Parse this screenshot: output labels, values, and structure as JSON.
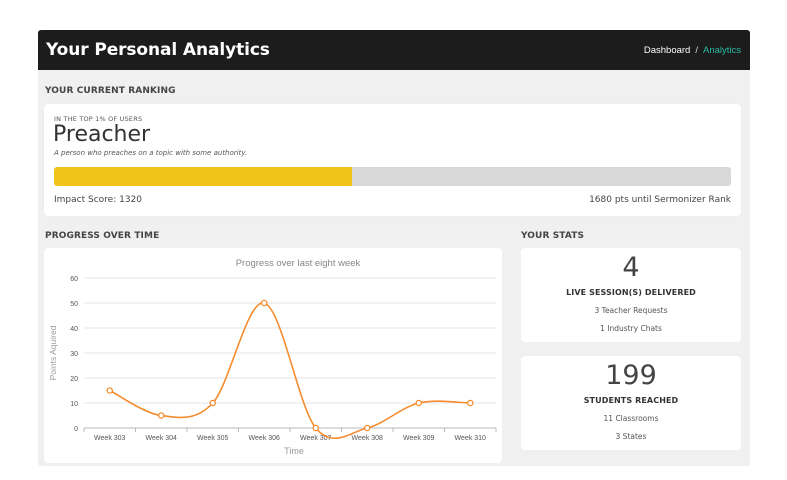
{
  "header": {
    "title": "Your Personal Analytics",
    "breadcrumb": [
      {
        "label": "Dashboard",
        "active": false
      },
      {
        "label": "Analytics",
        "active": true
      }
    ],
    "separator": "/"
  },
  "ranking": {
    "section_title": "YOUR CURRENT RANKING",
    "top_label": "IN THE TOP 1% OF USERS",
    "rank_name": "Preacher",
    "description": "A person who preaches on a topic with some authority.",
    "progress_fraction": 0.44,
    "impact_score": "Impact Score: 1320",
    "until_next": "1680 pts until Sermonizer Rank"
  },
  "progress": {
    "section_title": "PROGRESS OVER TIME"
  },
  "stats": {
    "section_title": "YOUR STATS",
    "cards": [
      {
        "value": "4",
        "label": "LIVE SESSION(S) DELIVERED",
        "lines": [
          "3 Teacher Requests",
          "1 Industry Chats"
        ]
      },
      {
        "value": "199",
        "label": "STUDENTS REACHED",
        "lines": [
          "11 Classrooms",
          "3 States"
        ]
      }
    ]
  },
  "chart_data": {
    "type": "line",
    "title": "Progress over last eight week",
    "xlabel": "Time",
    "ylabel": "Points Aquired",
    "categories": [
      "Week 303",
      "Week 304",
      "Week 305",
      "Week 306",
      "Week 307",
      "Week 308",
      "Week 309",
      "Week 310"
    ],
    "series": [
      {
        "values": [
          15,
          5,
          10,
          50,
          0,
          0,
          10,
          10
        ]
      }
    ],
    "ylim": [
      0,
      60
    ],
    "yticks": [
      0,
      10,
      20,
      30,
      40,
      50,
      60
    ],
    "grid": true,
    "line_color": "#f58b2c"
  }
}
